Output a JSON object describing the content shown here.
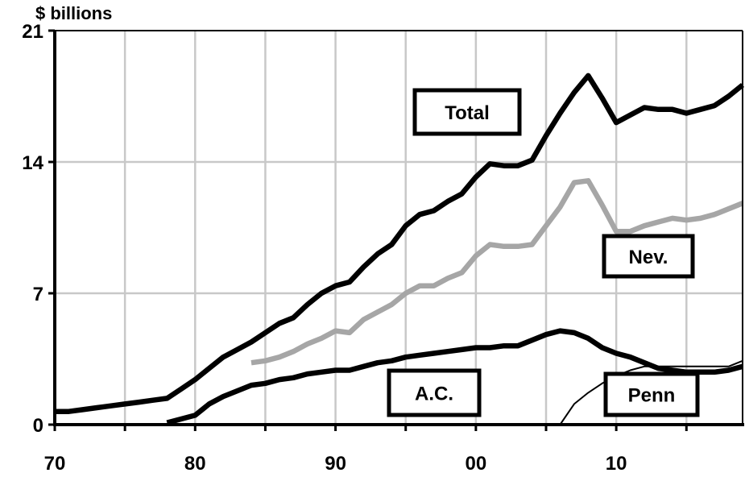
{
  "chart_data": {
    "type": "line",
    "ylabel": "$ billions",
    "xlim": [
      1970,
      2019
    ],
    "ylim": [
      0,
      21
    ],
    "x_ticks": [
      1970,
      1980,
      1990,
      2000,
      2010
    ],
    "x_tick_labels": [
      "70",
      "80",
      "90",
      "00",
      "10"
    ],
    "y_ticks": [
      0,
      7,
      14,
      21
    ],
    "y_tick_labels": [
      "0",
      "7",
      "14",
      "21"
    ],
    "grid": true,
    "series": [
      {
        "name": "Total",
        "color": "#000000",
        "stroke": "thick",
        "x": [
          1970,
          1971,
          1972,
          1973,
          1974,
          1975,
          1976,
          1977,
          1978,
          1979,
          1980,
          1981,
          1982,
          1983,
          1984,
          1985,
          1986,
          1987,
          1988,
          1989,
          1990,
          1991,
          1992,
          1993,
          1994,
          1995,
          1996,
          1997,
          1998,
          1999,
          2000,
          2001,
          2002,
          2003,
          2004,
          2005,
          2006,
          2007,
          2008,
          2009,
          2010,
          2011,
          2012,
          2013,
          2014,
          2015,
          2016,
          2017,
          2018,
          2019
        ],
        "y": [
          0.7,
          0.7,
          0.8,
          0.9,
          1.0,
          1.1,
          1.2,
          1.3,
          1.4,
          1.9,
          2.4,
          3.0,
          3.6,
          4.0,
          4.4,
          4.9,
          5.4,
          5.7,
          6.4,
          7.0,
          7.4,
          7.6,
          8.4,
          9.1,
          9.6,
          10.6,
          11.2,
          11.4,
          11.9,
          12.3,
          13.2,
          13.9,
          13.8,
          13.8,
          14.1,
          15.4,
          16.6,
          17.7,
          18.6,
          17.4,
          16.1,
          16.5,
          16.9,
          16.8,
          16.8,
          16.6,
          16.8,
          17.0,
          17.5,
          18.1
        ]
      },
      {
        "name": "Nev.",
        "color": "#a6a6a6",
        "stroke": "thick",
        "x": [
          1984,
          1985,
          1986,
          1987,
          1988,
          1989,
          1990,
          1991,
          1992,
          1993,
          1994,
          1995,
          1996,
          1997,
          1998,
          1999,
          2000,
          2001,
          2002,
          2003,
          2004,
          2005,
          2006,
          2007,
          2008,
          2009,
          2010,
          2011,
          2012,
          2013,
          2014,
          2015,
          2016,
          2017,
          2018,
          2019
        ],
        "y": [
          3.3,
          3.4,
          3.6,
          3.9,
          4.3,
          4.6,
          5.0,
          4.9,
          5.6,
          6.0,
          6.4,
          7.0,
          7.4,
          7.4,
          7.8,
          8.1,
          9.0,
          9.6,
          9.5,
          9.5,
          9.6,
          10.6,
          11.6,
          12.9,
          13.0,
          11.7,
          10.3,
          10.3,
          10.6,
          10.8,
          11.0,
          10.9,
          11.0,
          11.2,
          11.5,
          11.8
        ]
      },
      {
        "name": "A.C.",
        "color": "#000000",
        "stroke": "thick",
        "x": [
          1978,
          1979,
          1980,
          1981,
          1982,
          1983,
          1984,
          1985,
          1986,
          1987,
          1988,
          1989,
          1990,
          1991,
          1992,
          1993,
          1994,
          1995,
          1996,
          1997,
          1998,
          1999,
          2000,
          2001,
          2002,
          2003,
          2004,
          2005,
          2006,
          2007,
          2008,
          2009,
          2010,
          2011,
          2012,
          2013,
          2014,
          2015,
          2016,
          2017,
          2018,
          2019
        ],
        "y": [
          0.1,
          0.3,
          0.5,
          1.1,
          1.5,
          1.8,
          2.1,
          2.2,
          2.4,
          2.5,
          2.7,
          2.8,
          2.9,
          2.9,
          3.1,
          3.3,
          3.4,
          3.6,
          3.7,
          3.8,
          3.9,
          4.0,
          4.1,
          4.1,
          4.2,
          4.2,
          4.5,
          4.8,
          5.0,
          4.9,
          4.6,
          4.1,
          3.8,
          3.6,
          3.3,
          3.0,
          2.9,
          2.8,
          2.8,
          2.8,
          2.9,
          3.1
        ]
      },
      {
        "name": "Penn",
        "color": "#000000",
        "stroke": "thin",
        "x": [
          2006,
          2007,
          2008,
          2009,
          2010,
          2011,
          2012,
          2013,
          2014,
          2015,
          2016,
          2017,
          2018,
          2019
        ],
        "y": [
          0.0,
          1.1,
          1.7,
          2.2,
          2.6,
          2.9,
          3.1,
          3.1,
          3.1,
          3.1,
          3.1,
          3.1,
          3.1,
          3.4
        ]
      }
    ],
    "labels": [
      {
        "text": "Total",
        "series": "Total"
      },
      {
        "text": "Nev.",
        "series": "Nev."
      },
      {
        "text": "A.C.",
        "series": "A.C."
      },
      {
        "text": "Penn",
        "series": "Penn"
      }
    ]
  }
}
